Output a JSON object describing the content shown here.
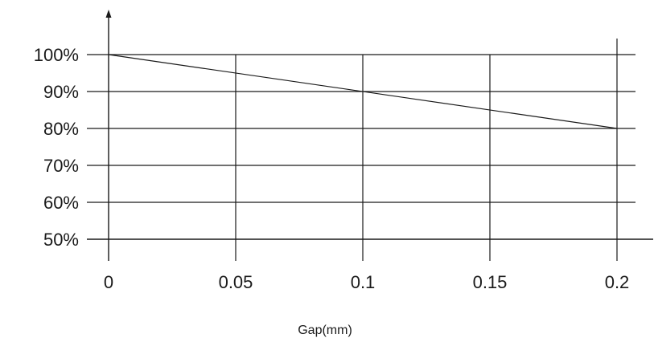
{
  "chart_data": {
    "type": "line",
    "xlabel": "Gap(mm)",
    "ylabel": "",
    "x_ticks": [
      "0",
      "0.05",
      "0.1",
      "0.15",
      "0.2"
    ],
    "y_ticks": [
      "50%",
      "60%",
      "70%",
      "80%",
      "90%",
      "100%"
    ],
    "x_tick_values": [
      0,
      0.05,
      0.1,
      0.15,
      0.2
    ],
    "y_tick_values": [
      50,
      60,
      70,
      80,
      90,
      100
    ],
    "xlim": [
      0,
      0.2
    ],
    "ylim": [
      50,
      100
    ],
    "grid": true,
    "series": [
      {
        "x": [
          0,
          0.2
        ],
        "y": [
          100,
          80
        ]
      }
    ]
  }
}
